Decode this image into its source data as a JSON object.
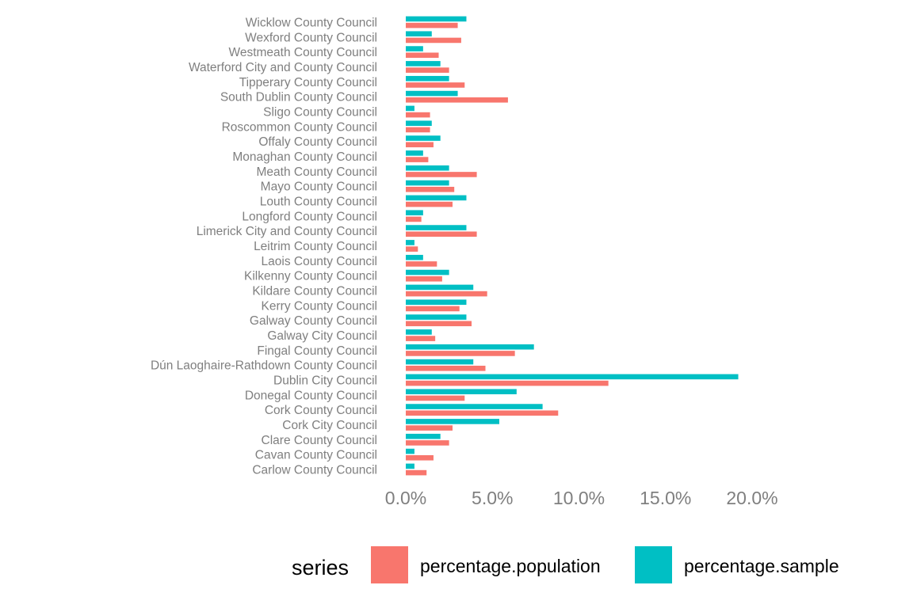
{
  "chart_data": {
    "type": "bar",
    "orientation": "horizontal",
    "categories": [
      "Carlow County Council",
      "Cavan County Council",
      "Clare County Council",
      "Cork City Council",
      "Cork County Council",
      "Donegal County Council",
      "Dublin City Council",
      "Dún Laoghaire-Rathdown County Council",
      "Fingal County Council",
      "Galway City Council",
      "Galway County Council",
      "Kerry County Council",
      "Kildare County Council",
      "Kilkenny County Council",
      "Laois County Council",
      "Leitrim County Council",
      "Limerick City and County Council",
      "Longford County Council",
      "Louth County Council",
      "Mayo County Council",
      "Meath County Council",
      "Monaghan County Council",
      "Offaly County Council",
      "Roscommon County Council",
      "Sligo County Council",
      "South Dublin County Council",
      "Tipperary County Council",
      "Waterford City and County Council",
      "Westmeath County Council",
      "Wexford County Council",
      "Wicklow County Council"
    ],
    "series": [
      {
        "name": "percentage.population",
        "color": "#F8766D",
        "values": [
          1.2,
          1.6,
          2.5,
          2.7,
          8.8,
          3.4,
          11.7,
          4.6,
          6.3,
          1.7,
          3.8,
          3.1,
          4.7,
          2.1,
          1.8,
          0.7,
          4.1,
          0.9,
          2.7,
          2.8,
          4.1,
          1.3,
          1.6,
          1.4,
          1.4,
          5.9,
          3.4,
          2.5,
          1.9,
          3.2,
          3.0
        ]
      },
      {
        "name": "percentage.sample",
        "color": "#00BFC4",
        "values": [
          0.5,
          0.5,
          2.0,
          5.4,
          7.9,
          6.4,
          19.2,
          3.9,
          7.4,
          1.5,
          3.5,
          3.5,
          3.9,
          2.5,
          1.0,
          0.5,
          3.5,
          1.0,
          3.5,
          2.5,
          2.5,
          1.0,
          2.0,
          1.5,
          0.5,
          3.0,
          2.5,
          2.0,
          1.0,
          1.5,
          3.5
        ]
      }
    ],
    "x_ticks": [
      "0.0%",
      "5.0%",
      "10.0%",
      "15.0%",
      "20.0%"
    ],
    "x_tick_values": [
      0,
      5,
      10,
      15,
      20
    ],
    "xlim": [
      0,
      20.5
    ],
    "title": "",
    "xlabel": "",
    "ylabel": "",
    "grid": false,
    "legend": {
      "position": "bottom",
      "title": "series",
      "entries": [
        "percentage.population",
        "percentage.sample"
      ]
    }
  }
}
